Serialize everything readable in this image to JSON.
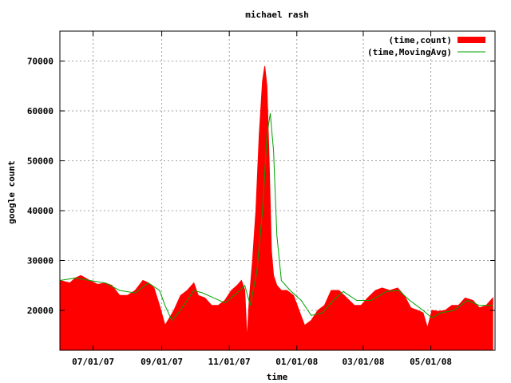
{
  "chart_data": {
    "type": "area",
    "title": "michael rash",
    "xlabel": "time",
    "ylabel": "google count",
    "x_ticks": [
      "07/01/07",
      "09/01/07",
      "11/01/07",
      "01/01/08",
      "03/01/08",
      "05/01/08"
    ],
    "x_tick_dates": [
      "2007-07-01",
      "2007-09-01",
      "2007-11-01",
      "2008-01-01",
      "2008-03-01",
      "2008-05-01"
    ],
    "xlim": [
      "2007-06-01",
      "2008-06-28"
    ],
    "y_ticks": [
      20000,
      30000,
      40000,
      50000,
      60000,
      70000
    ],
    "ylim": [
      12000,
      76000
    ],
    "grid": true,
    "legend_position": "top-right",
    "colors": {
      "count": "#ff0000",
      "moving_avg": "#00a000"
    },
    "series": [
      {
        "name": "(time,count)",
        "style": "filled",
        "points": [
          [
            "2007-06-01",
            26000
          ],
          [
            "2007-06-10",
            25500
          ],
          [
            "2007-06-15",
            26500
          ],
          [
            "2007-06-20",
            27000
          ],
          [
            "2007-06-28",
            26000
          ],
          [
            "2007-07-05",
            25200
          ],
          [
            "2007-07-12",
            25500
          ],
          [
            "2007-07-18",
            25000
          ],
          [
            "2007-07-25",
            23000
          ],
          [
            "2007-08-01",
            23000
          ],
          [
            "2007-08-08",
            24000
          ],
          [
            "2007-08-15",
            26000
          ],
          [
            "2007-08-20",
            25500
          ],
          [
            "2007-08-25",
            24500
          ],
          [
            "2007-08-30",
            21000
          ],
          [
            "2007-09-04",
            17000
          ],
          [
            "2007-09-08",
            18500
          ],
          [
            "2007-09-12",
            20000
          ],
          [
            "2007-09-18",
            23000
          ],
          [
            "2007-09-24",
            24000
          ],
          [
            "2007-09-30",
            25500
          ],
          [
            "2007-10-04",
            23000
          ],
          [
            "2007-10-10",
            22500
          ],
          [
            "2007-10-16",
            21000
          ],
          [
            "2007-10-22",
            21000
          ],
          [
            "2007-10-28",
            22000
          ],
          [
            "2007-11-03",
            24000
          ],
          [
            "2007-11-08",
            25000
          ],
          [
            "2007-11-12",
            26000
          ],
          [
            "2007-11-15",
            24000
          ],
          [
            "2007-11-17",
            14000
          ],
          [
            "2007-11-19",
            22000
          ],
          [
            "2007-11-22",
            30000
          ],
          [
            "2007-11-25",
            40000
          ],
          [
            "2007-11-28",
            55000
          ],
          [
            "2007-12-01",
            66000
          ],
          [
            "2007-12-03",
            69000
          ],
          [
            "2007-12-05",
            65000
          ],
          [
            "2007-12-07",
            50000
          ],
          [
            "2007-12-09",
            32000
          ],
          [
            "2007-12-11",
            27000
          ],
          [
            "2007-12-14",
            25000
          ],
          [
            "2007-12-18",
            24000
          ],
          [
            "2007-12-23",
            24000
          ],
          [
            "2007-12-29",
            23000
          ],
          [
            "2008-01-03",
            20000
          ],
          [
            "2008-01-08",
            17000
          ],
          [
            "2008-01-14",
            18000
          ],
          [
            "2008-01-20",
            20000
          ],
          [
            "2008-01-26",
            21000
          ],
          [
            "2008-02-01",
            24000
          ],
          [
            "2008-02-08",
            24000
          ],
          [
            "2008-02-15",
            22500
          ],
          [
            "2008-02-22",
            21000
          ],
          [
            "2008-02-28",
            21000
          ],
          [
            "2008-03-05",
            22500
          ],
          [
            "2008-03-12",
            24000
          ],
          [
            "2008-03-18",
            24500
          ],
          [
            "2008-03-25",
            24000
          ],
          [
            "2008-04-01",
            24500
          ],
          [
            "2008-04-07",
            23000
          ],
          [
            "2008-04-13",
            20500
          ],
          [
            "2008-04-19",
            20000
          ],
          [
            "2008-04-24",
            19500
          ],
          [
            "2008-04-28",
            16500
          ],
          [
            "2008-05-02",
            20000
          ],
          [
            "2008-05-08",
            19800
          ],
          [
            "2008-05-14",
            20000
          ],
          [
            "2008-05-20",
            21000
          ],
          [
            "2008-05-26",
            21000
          ],
          [
            "2008-06-01",
            22500
          ],
          [
            "2008-06-08",
            22000
          ],
          [
            "2008-06-14",
            20500
          ],
          [
            "2008-06-20",
            21000
          ],
          [
            "2008-06-26",
            22500
          ]
        ]
      },
      {
        "name": "(time,MovingAvg)",
        "style": "line",
        "points": [
          [
            "2007-06-01",
            26000
          ],
          [
            "2007-06-15",
            26500
          ],
          [
            "2007-06-28",
            26000
          ],
          [
            "2007-07-12",
            25500
          ],
          [
            "2007-07-25",
            24000
          ],
          [
            "2007-08-08",
            23500
          ],
          [
            "2007-08-20",
            25500
          ],
          [
            "2007-08-30",
            24000
          ],
          [
            "2007-09-04",
            21000
          ],
          [
            "2007-09-10",
            18000
          ],
          [
            "2007-09-16",
            19500
          ],
          [
            "2007-09-24",
            22000
          ],
          [
            "2007-09-30",
            24000
          ],
          [
            "2007-10-08",
            23500
          ],
          [
            "2007-10-18",
            22500
          ],
          [
            "2007-10-28",
            21500
          ],
          [
            "2007-11-08",
            23500
          ],
          [
            "2007-11-15",
            25000
          ],
          [
            "2007-11-20",
            21000
          ],
          [
            "2007-11-26",
            28000
          ],
          [
            "2007-12-01",
            40000
          ],
          [
            "2007-12-05",
            55000
          ],
          [
            "2007-12-08",
            59500
          ],
          [
            "2007-12-11",
            52000
          ],
          [
            "2007-12-14",
            35000
          ],
          [
            "2007-12-18",
            26000
          ],
          [
            "2007-12-26",
            24000
          ],
          [
            "2008-01-05",
            22000
          ],
          [
            "2008-01-14",
            19000
          ],
          [
            "2008-01-24",
            19500
          ],
          [
            "2008-02-03",
            22000
          ],
          [
            "2008-02-12",
            23800
          ],
          [
            "2008-02-24",
            22000
          ],
          [
            "2008-03-08",
            22000
          ],
          [
            "2008-03-22",
            23800
          ],
          [
            "2008-04-02",
            24000
          ],
          [
            "2008-04-12",
            22000
          ],
          [
            "2008-04-24",
            20000
          ],
          [
            "2008-05-02",
            18500
          ],
          [
            "2008-05-10",
            19500
          ],
          [
            "2008-05-22",
            20000
          ],
          [
            "2008-06-03",
            22000
          ],
          [
            "2008-06-14",
            21000
          ],
          [
            "2008-06-26",
            21000
          ]
        ]
      }
    ]
  }
}
